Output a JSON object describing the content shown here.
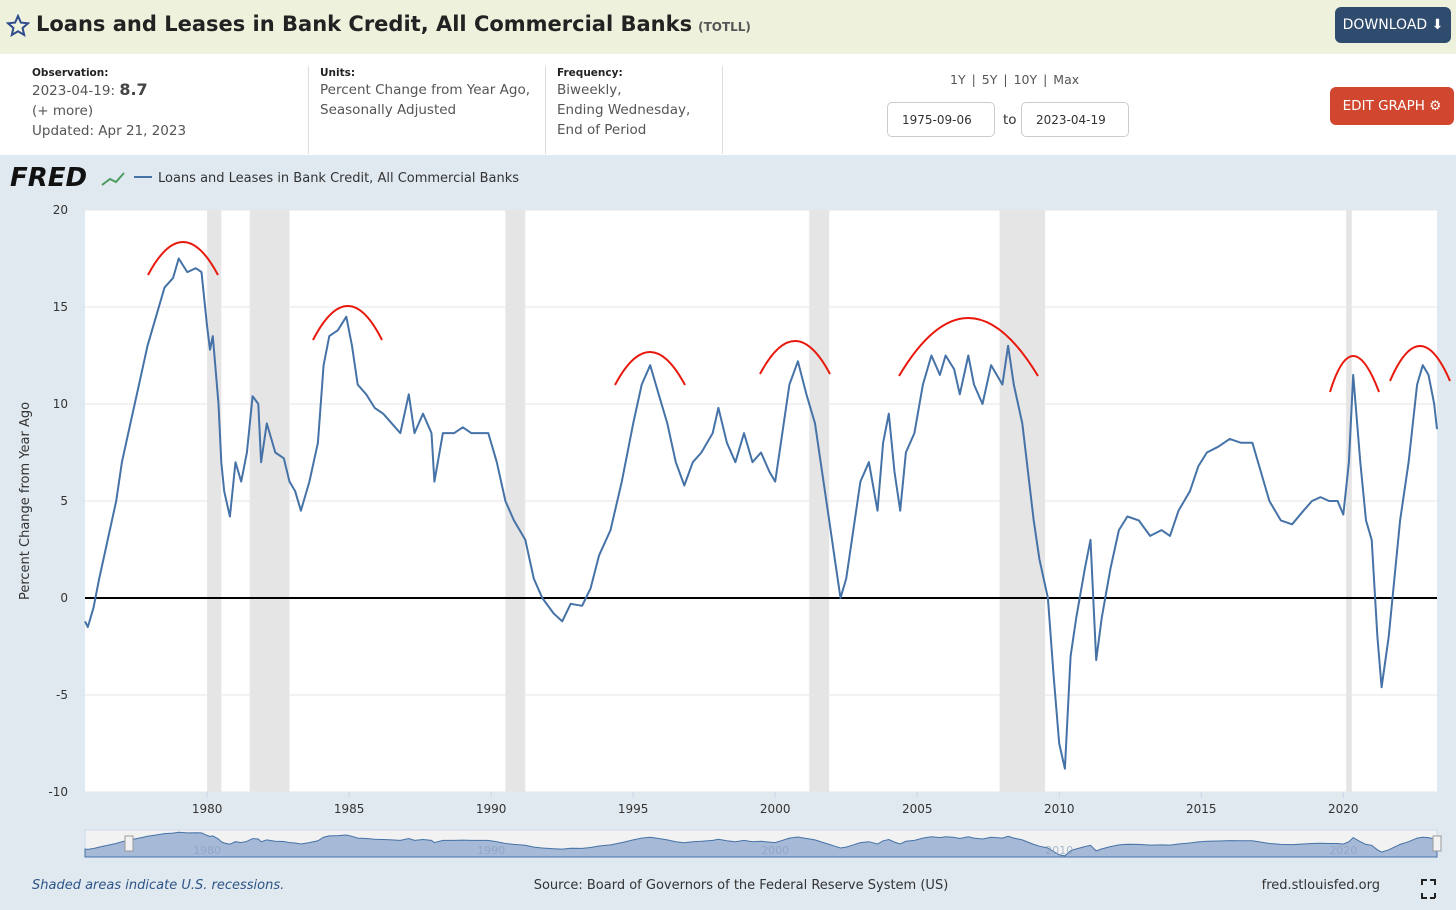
{
  "header": {
    "title": "Loans and Leases in Bank Credit, All Commercial Banks",
    "series_id": "(TOTLL)",
    "download": "DOWNLOAD"
  },
  "info": {
    "observation_label": "Observation:",
    "observation_date": "2023-04-19:",
    "observation_value": "8.7",
    "more": "(+ more)",
    "updated": "Updated: Apr 21, 2023",
    "units_label": "Units:",
    "units_lines": [
      "Percent Change from Year Ago,",
      "Seasonally Adjusted"
    ],
    "frequency_label": "Frequency:",
    "frequency_lines": [
      "Biweekly,",
      "Ending Wednesday,",
      "End of Period"
    ],
    "ranges": [
      "1Y",
      "5Y",
      "10Y",
      "Max"
    ],
    "separator": "|",
    "start_date": "1975-09-06",
    "to": "to",
    "end_date": "2023-04-19",
    "edit": "EDIT GRAPH"
  },
  "logo": "FRED",
  "chart_data": {
    "type": "line",
    "y_label": "Percent Change from Year Ago",
    "xlim": [
      1975.7,
      2023.3
    ],
    "xticks": [
      1980,
      1985,
      1990,
      1995,
      2000,
      2005,
      2010,
      2015,
      2020
    ],
    "ylim": [
      -10,
      20
    ],
    "yticks": [
      -10,
      -5,
      0,
      5,
      10,
      15,
      20
    ],
    "grid": true,
    "legend": "top-left",
    "recessions": [
      [
        1980.0,
        1980.5
      ],
      [
        1981.5,
        1982.9
      ],
      [
        1990.5,
        1991.2
      ],
      [
        2001.2,
        2001.9
      ],
      [
        2007.9,
        2009.5
      ],
      [
        2020.1,
        2020.3
      ]
    ],
    "x": [
      1975.7,
      1975.8,
      1976.0,
      1976.2,
      1976.5,
      1976.8,
      1977.0,
      1977.3,
      1977.6,
      1977.9,
      1978.2,
      1978.5,
      1978.8,
      1979.0,
      1979.3,
      1979.6,
      1979.8,
      1980.0,
      1980.1,
      1980.2,
      1980.4,
      1980.5,
      1980.6,
      1980.8,
      1981.0,
      1981.2,
      1981.4,
      1981.6,
      1981.8,
      1981.9,
      1982.1,
      1982.4,
      1982.7,
      1982.9,
      1983.1,
      1983.3,
      1983.6,
      1983.9,
      1984.1,
      1984.3,
      1984.6,
      1984.9,
      1985.1,
      1985.3,
      1985.6,
      1985.9,
      1986.2,
      1986.5,
      1986.8,
      1987.1,
      1987.3,
      1987.6,
      1987.9,
      1988.0,
      1988.3,
      1988.7,
      1989.0,
      1989.3,
      1989.6,
      1989.9,
      1990.2,
      1990.5,
      1990.8,
      1991.2,
      1991.5,
      1991.8,
      1992.2,
      1992.5,
      1992.8,
      1993.2,
      1993.5,
      1993.8,
      1994.2,
      1994.6,
      1995.0,
      1995.3,
      1995.6,
      1995.9,
      1996.2,
      1996.5,
      1996.8,
      1997.1,
      1997.4,
      1997.8,
      1998.0,
      1998.3,
      1998.6,
      1998.9,
      1999.2,
      1999.5,
      1999.8,
      2000.0,
      2000.2,
      2000.5,
      2000.8,
      2001.1,
      2001.4,
      2001.7,
      2001.9,
      2002.1,
      2002.3,
      2002.5,
      2002.7,
      2003.0,
      2003.3,
      2003.6,
      2003.8,
      2004.0,
      2004.2,
      2004.4,
      2004.6,
      2004.9,
      2005.2,
      2005.5,
      2005.8,
      2006.0,
      2006.3,
      2006.5,
      2006.8,
      2007.0,
      2007.3,
      2007.6,
      2008.0,
      2008.2,
      2008.4,
      2008.7,
      2008.9,
      2009.1,
      2009.3,
      2009.6,
      2009.8,
      2010.0,
      2010.2,
      2010.4,
      2010.6,
      2010.9,
      2011.1,
      2011.3,
      2011.5,
      2011.8,
      2012.1,
      2012.4,
      2012.8,
      2013.2,
      2013.6,
      2013.9,
      2014.2,
      2014.6,
      2014.9,
      2015.2,
      2015.6,
      2016.0,
      2016.4,
      2016.8,
      2017.1,
      2017.4,
      2017.8,
      2018.2,
      2018.6,
      2018.9,
      2019.2,
      2019.5,
      2019.8,
      2020.0,
      2020.2,
      2020.35,
      2020.6,
      2020.8,
      2021.0,
      2021.2,
      2021.35,
      2021.6,
      2021.8,
      2022.0,
      2022.3,
      2022.6,
      2022.8,
      2023.0,
      2023.2,
      2023.3
    ],
    "series": [
      {
        "name": "Loans and Leases in Bank Credit, All Commercial Banks",
        "color": "#4572a7",
        "values": [
          -1.2,
          -1.5,
          -0.5,
          1,
          3,
          5,
          7,
          9,
          11,
          13,
          14.5,
          16,
          16.5,
          17.5,
          16.8,
          17,
          16.8,
          14,
          12.8,
          13.5,
          10,
          7,
          5.5,
          4.2,
          7,
          6,
          7.5,
          10.4,
          10,
          7,
          9,
          7.5,
          7.2,
          6,
          5.5,
          4.5,
          6,
          8,
          12,
          13.5,
          13.8,
          14.5,
          13,
          11,
          10.5,
          9.8,
          9.5,
          9,
          8.5,
          10.5,
          8.5,
          9.5,
          8.5,
          6,
          8.5,
          8.5,
          8.8,
          8.5,
          8.5,
          8.5,
          7,
          5,
          4,
          3,
          1,
          0,
          -0.8,
          -1.2,
          -0.3,
          -0.4,
          0.5,
          2.2,
          3.5,
          6,
          9,
          11,
          12,
          10.5,
          9,
          7,
          5.8,
          7,
          7.5,
          8.5,
          9.8,
          8,
          7,
          8.5,
          7,
          7.5,
          6.5,
          6,
          8,
          11,
          12.2,
          10.5,
          9,
          6,
          4,
          2,
          0,
          1,
          3,
          6,
          7,
          4.5,
          8,
          9.5,
          6.5,
          4.5,
          7.5,
          8.5,
          11,
          12.5,
          11.5,
          12.5,
          11.8,
          10.5,
          12.5,
          11,
          10,
          12,
          11,
          13,
          11,
          9,
          6.5,
          4,
          2,
          0,
          -4,
          -7.5,
          -8.8,
          -3,
          -1,
          1.5,
          3,
          -3.2,
          -1,
          1.5,
          3.5,
          4.2,
          4,
          3.2,
          3.5,
          3.2,
          4.5,
          5.5,
          6.8,
          7.5,
          7.8,
          8.2,
          8,
          8,
          6.5,
          5,
          4,
          3.8,
          4.5,
          5,
          5.2,
          5,
          5,
          4.3,
          7,
          11.5,
          7,
          4,
          3,
          -2,
          -4.6,
          -2,
          1,
          4,
          7,
          11,
          12,
          11.5,
          10,
          8.7
        ]
      }
    ],
    "navigator_ticks": [
      "1980",
      "1990",
      "2000",
      "2010",
      "2020"
    ]
  },
  "footer": {
    "note": "Shaded areas indicate U.S. recessions.",
    "source": "Source: Board of Governors of the Federal Reserve System (US)",
    "site": "fred.stlouisfed.org"
  }
}
